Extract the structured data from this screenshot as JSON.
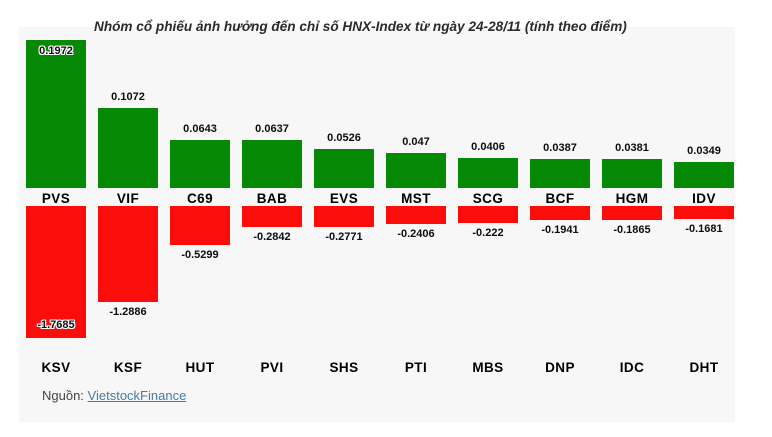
{
  "title": "Nhóm cổ phiếu ảnh hưởng đến chỉ số HNX-Index từ ngày 24-28/11 (tính theo điểm)",
  "source": {
    "label": "Nguồn:",
    "link_text": "VietstockFinance"
  },
  "colors": {
    "positive": "#068a06",
    "negative": "#fb0d0c",
    "panel_bg": "#f7f7f7",
    "link": "#4a7ba6",
    "label_text": "#0d0d0d"
  },
  "chart_data": {
    "type": "bar",
    "title": "Nhóm cổ phiếu ảnh hưởng đến chỉ số HNX-Index từ ngày 24-28/11 (tính theo điểm)",
    "legend": "off",
    "grid": "off",
    "axes": "none",
    "layout_hint": "two stacked bar rows: positive contributors (green, labels above bars, tickers below bars) and negative contributors (red, labels below bars, tickers at bottom)",
    "series": [
      {
        "name": "positive",
        "direction": "up",
        "color": "#068a06",
        "categories": [
          "PVS",
          "VIF",
          "C69",
          "BAB",
          "EVS",
          "MST",
          "SCG",
          "BCF",
          "HGM",
          "IDV"
        ],
        "values": [
          0.1972,
          0.1072,
          0.0643,
          0.0637,
          0.0526,
          0.047,
          0.0406,
          0.0387,
          0.0381,
          0.0349
        ],
        "labels": [
          "0.1972",
          "0.1072",
          "0.0643",
          "0.0637",
          "0.0526",
          "0.047",
          "0.0406",
          "0.0387",
          "0.0381",
          "0.0349"
        ]
      },
      {
        "name": "negative",
        "direction": "down",
        "color": "#fb0d0c",
        "categories": [
          "KSV",
          "KSF",
          "HUT",
          "PVI",
          "SHS",
          "PTI",
          "MBS",
          "DNP",
          "IDC",
          "DHT"
        ],
        "values": [
          -1.7685,
          -1.2886,
          -0.5299,
          -0.2842,
          -0.2771,
          -0.2406,
          -0.222,
          -0.1941,
          -0.1865,
          -0.1681
        ],
        "labels": [
          "-1.7685",
          "-1.2886",
          "-0.5299",
          "-0.2842",
          "-0.2771",
          "-0.2406",
          "-0.222",
          "-0.1941",
          "-0.1865",
          "-0.1681"
        ]
      }
    ]
  }
}
